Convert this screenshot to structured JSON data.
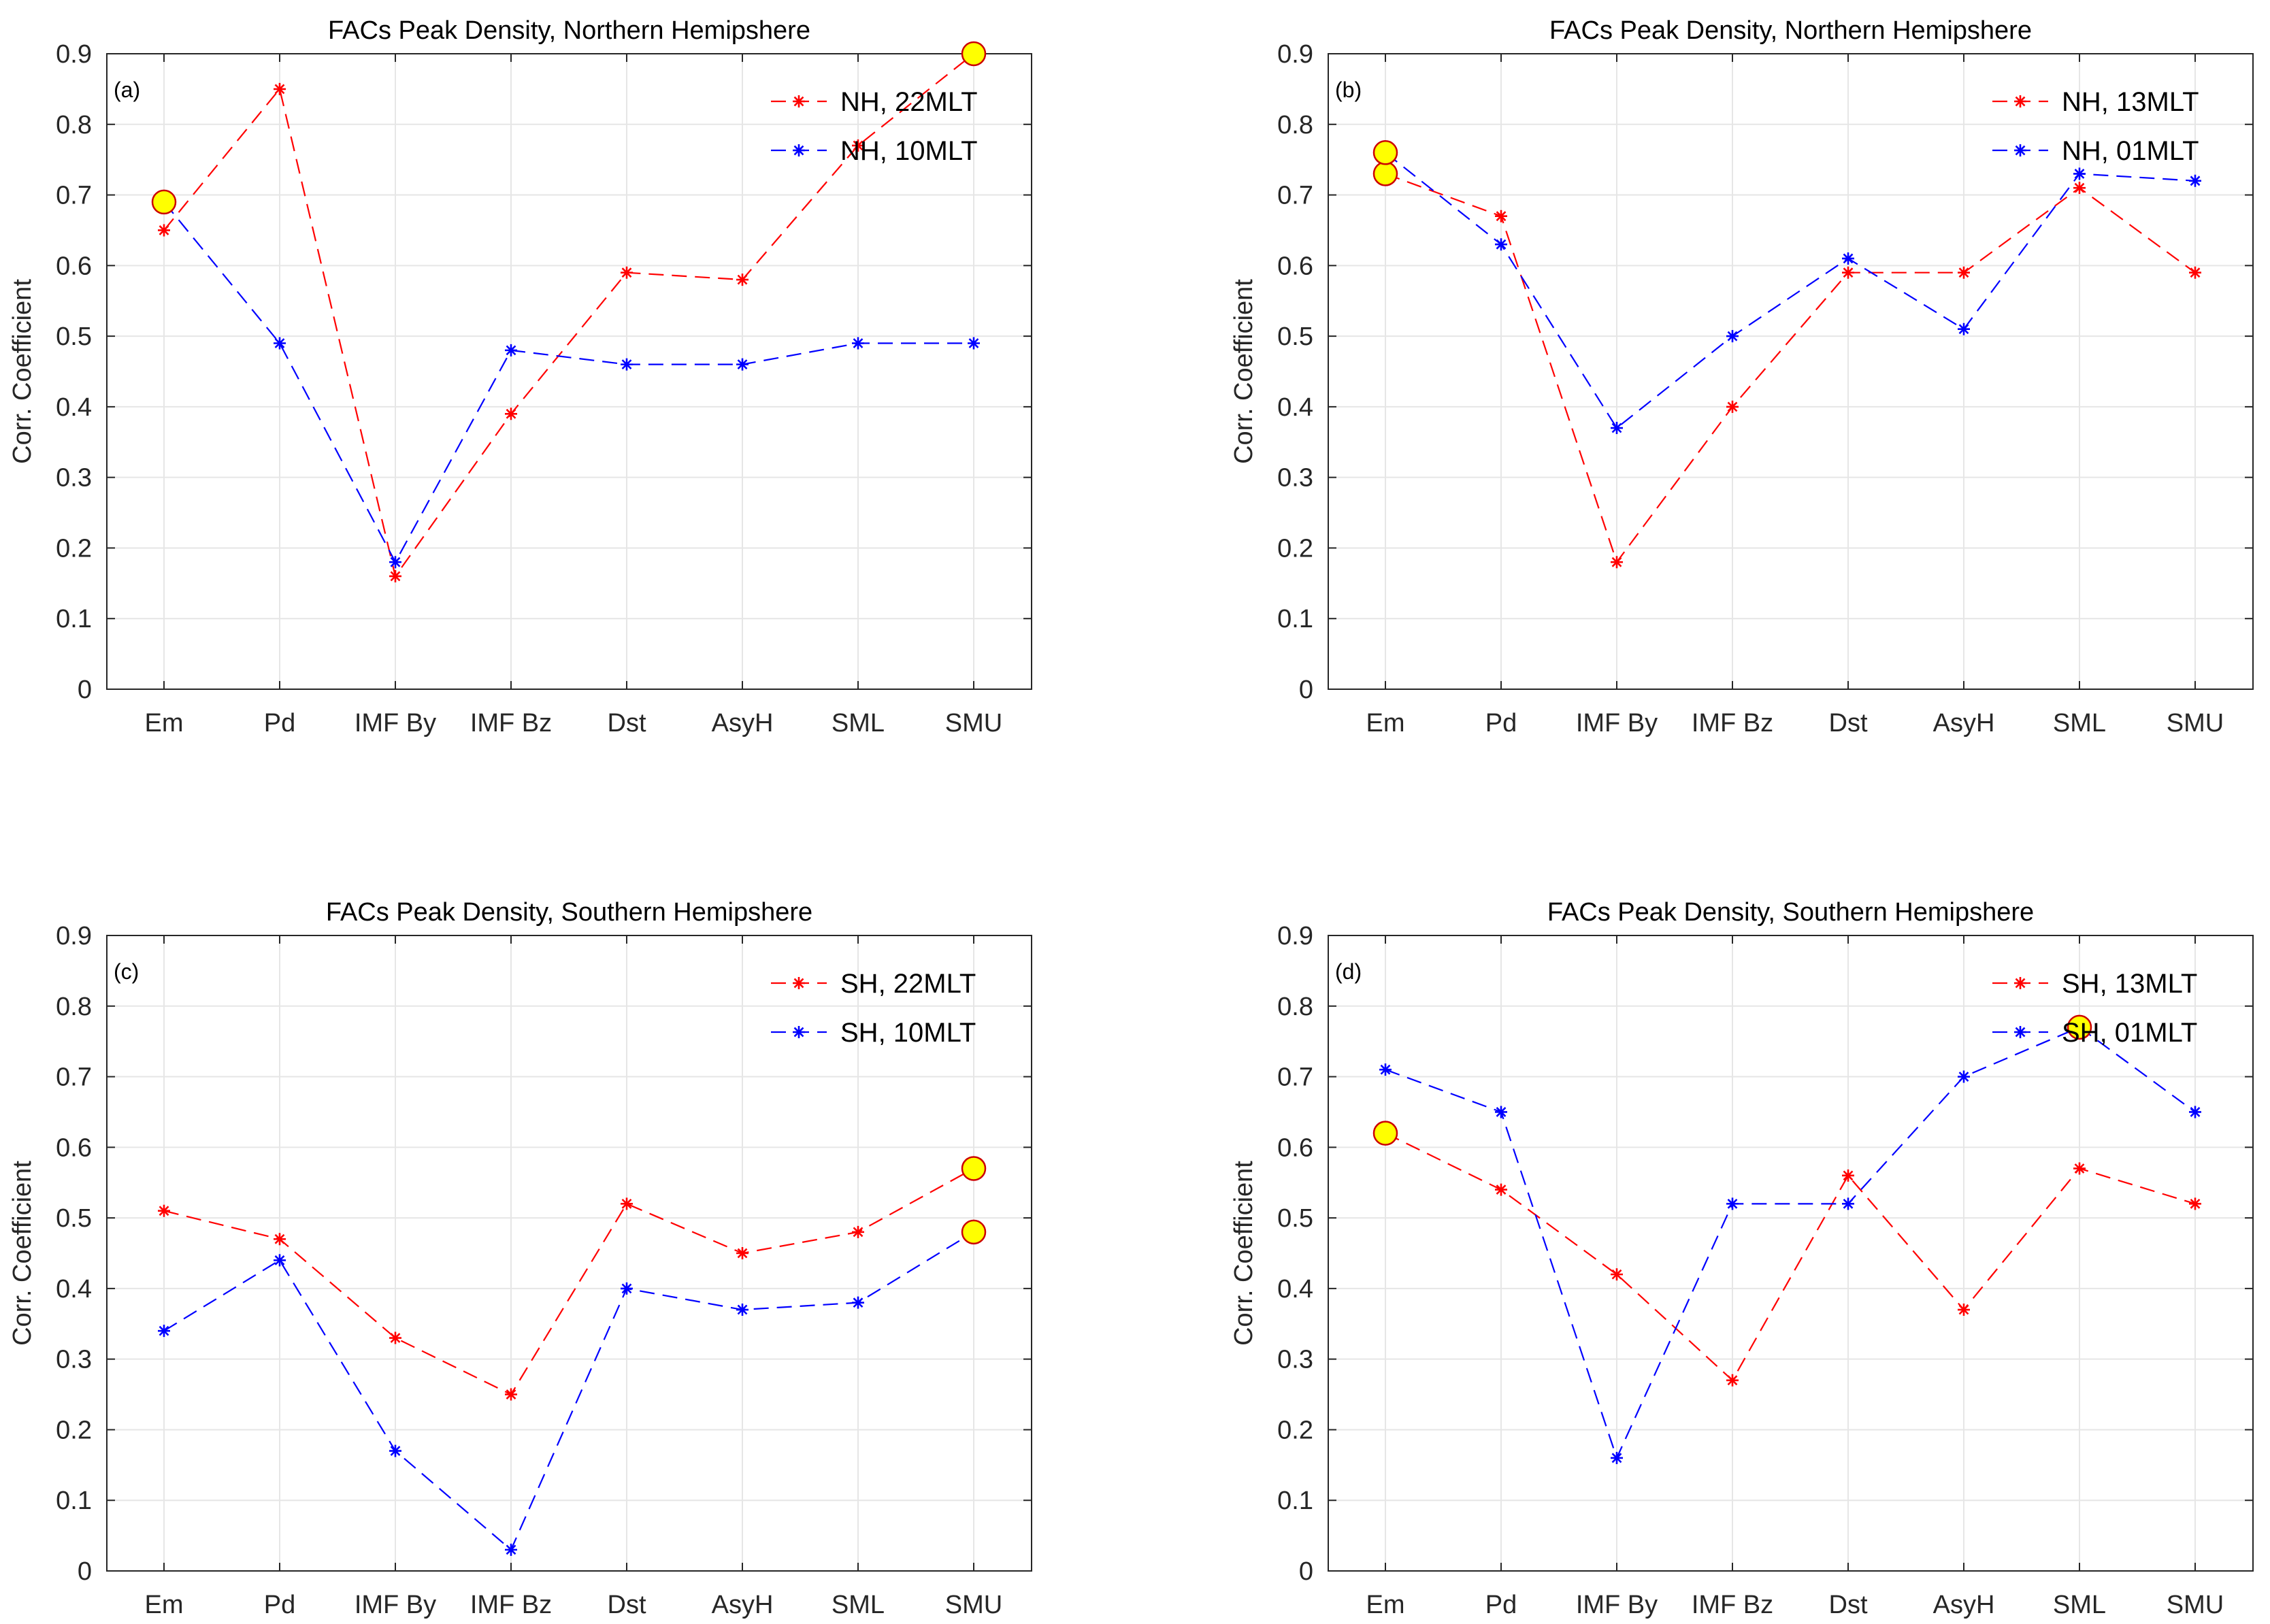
{
  "figure": {
    "colors": {
      "series_a": "#ff0000",
      "series_b": "#0000ff",
      "highlight_fill": "#ffff00",
      "highlight_edge": "#cc0000",
      "grid": "#e6e6e6",
      "axis": "#262626"
    }
  },
  "chart_data": [
    {
      "type": "line",
      "panel_label": "(a)",
      "title": "FACs Peak Density, Northern Hemipshere",
      "xlabel": "",
      "ylabel": "Corr. Coefficient",
      "categories": [
        "Em",
        "Pd",
        "IMF By",
        "IMF Bz",
        "Dst",
        "AsyH",
        "SML",
        "SMU"
      ],
      "yticks": [
        "0",
        "0.1",
        "0.2",
        "0.3",
        "0.4",
        "0.5",
        "0.6",
        "0.7",
        "0.8",
        "0.9"
      ],
      "ylim": [
        0,
        0.9
      ],
      "grid": true,
      "legend_position": "top-right",
      "series": [
        {
          "name": "NH, 22MLT",
          "color": "#ff0000",
          "values": [
            0.65,
            0.85,
            0.16,
            0.39,
            0.59,
            0.58,
            0.77,
            0.9
          ]
        },
        {
          "name": "NH, 10MLT",
          "color": "#0000ff",
          "values": [
            0.69,
            0.49,
            0.18,
            0.48,
            0.46,
            0.46,
            0.49,
            0.49
          ]
        }
      ],
      "highlights": [
        {
          "category": "Em",
          "value": 0.69
        },
        {
          "category": "SMU",
          "value": 0.9
        }
      ]
    },
    {
      "type": "line",
      "panel_label": "(b)",
      "title": "FACs Peak Density, Northern Hemipshere",
      "xlabel": "",
      "ylabel": "Corr. Coefficient",
      "categories": [
        "Em",
        "Pd",
        "IMF By",
        "IMF Bz",
        "Dst",
        "AsyH",
        "SML",
        "SMU"
      ],
      "yticks": [
        "0",
        "0.1",
        "0.2",
        "0.3",
        "0.4",
        "0.5",
        "0.6",
        "0.7",
        "0.8",
        "0.9"
      ],
      "ylim": [
        0,
        0.9
      ],
      "grid": true,
      "legend_position": "top-right",
      "series": [
        {
          "name": "NH, 13MLT",
          "color": "#ff0000",
          "values": [
            0.73,
            0.67,
            0.18,
            0.4,
            0.59,
            0.59,
            0.71,
            0.59
          ]
        },
        {
          "name": "NH, 01MLT",
          "color": "#0000ff",
          "values": [
            0.76,
            0.63,
            0.37,
            0.5,
            0.61,
            0.51,
            0.73,
            0.72
          ]
        }
      ],
      "highlights": [
        {
          "category": "Em",
          "value": 0.73
        },
        {
          "category": "Em",
          "value": 0.76
        }
      ]
    },
    {
      "type": "line",
      "panel_label": "(c)",
      "title": "FACs Peak Density, Southern Hemipshere",
      "xlabel": "",
      "ylabel": "Corr. Coefficient",
      "categories": [
        "Em",
        "Pd",
        "IMF By",
        "IMF Bz",
        "Dst",
        "AsyH",
        "SML",
        "SMU"
      ],
      "yticks": [
        "0",
        "0.1",
        "0.2",
        "0.3",
        "0.4",
        "0.5",
        "0.6",
        "0.7",
        "0.8",
        "0.9"
      ],
      "ylim": [
        0,
        0.9
      ],
      "grid": true,
      "legend_position": "top-right",
      "series": [
        {
          "name": "SH, 22MLT",
          "color": "#ff0000",
          "values": [
            0.51,
            0.47,
            0.33,
            0.25,
            0.52,
            0.45,
            0.48,
            0.57
          ]
        },
        {
          "name": "SH, 10MLT",
          "color": "#0000ff",
          "values": [
            0.34,
            0.44,
            0.17,
            0.03,
            0.4,
            0.37,
            0.38,
            0.48
          ]
        }
      ],
      "highlights": [
        {
          "category": "SMU",
          "value": 0.57
        },
        {
          "category": "SMU",
          "value": 0.48
        }
      ]
    },
    {
      "type": "line",
      "panel_label": "(d)",
      "title": "FACs Peak Density, Southern Hemipshere",
      "xlabel": "",
      "ylabel": "Corr. Coefficient",
      "categories": [
        "Em",
        "Pd",
        "IMF By",
        "IMF Bz",
        "Dst",
        "AsyH",
        "SML",
        "SMU"
      ],
      "yticks": [
        "0",
        "0.1",
        "0.2",
        "0.3",
        "0.4",
        "0.5",
        "0.6",
        "0.7",
        "0.8",
        "0.9"
      ],
      "ylim": [
        0,
        0.9
      ],
      "grid": true,
      "legend_position": "top-right",
      "series": [
        {
          "name": "SH, 13MLT",
          "color": "#ff0000",
          "values": [
            0.62,
            0.54,
            0.42,
            0.27,
            0.56,
            0.37,
            0.57,
            0.52
          ]
        },
        {
          "name": "SH, 01MLT",
          "color": "#0000ff",
          "values": [
            0.71,
            0.65,
            0.16,
            0.52,
            0.52,
            0.7,
            0.77,
            0.65
          ]
        }
      ],
      "highlights": [
        {
          "category": "Em",
          "value": 0.62
        },
        {
          "category": "SML",
          "value": 0.77
        }
      ]
    }
  ]
}
